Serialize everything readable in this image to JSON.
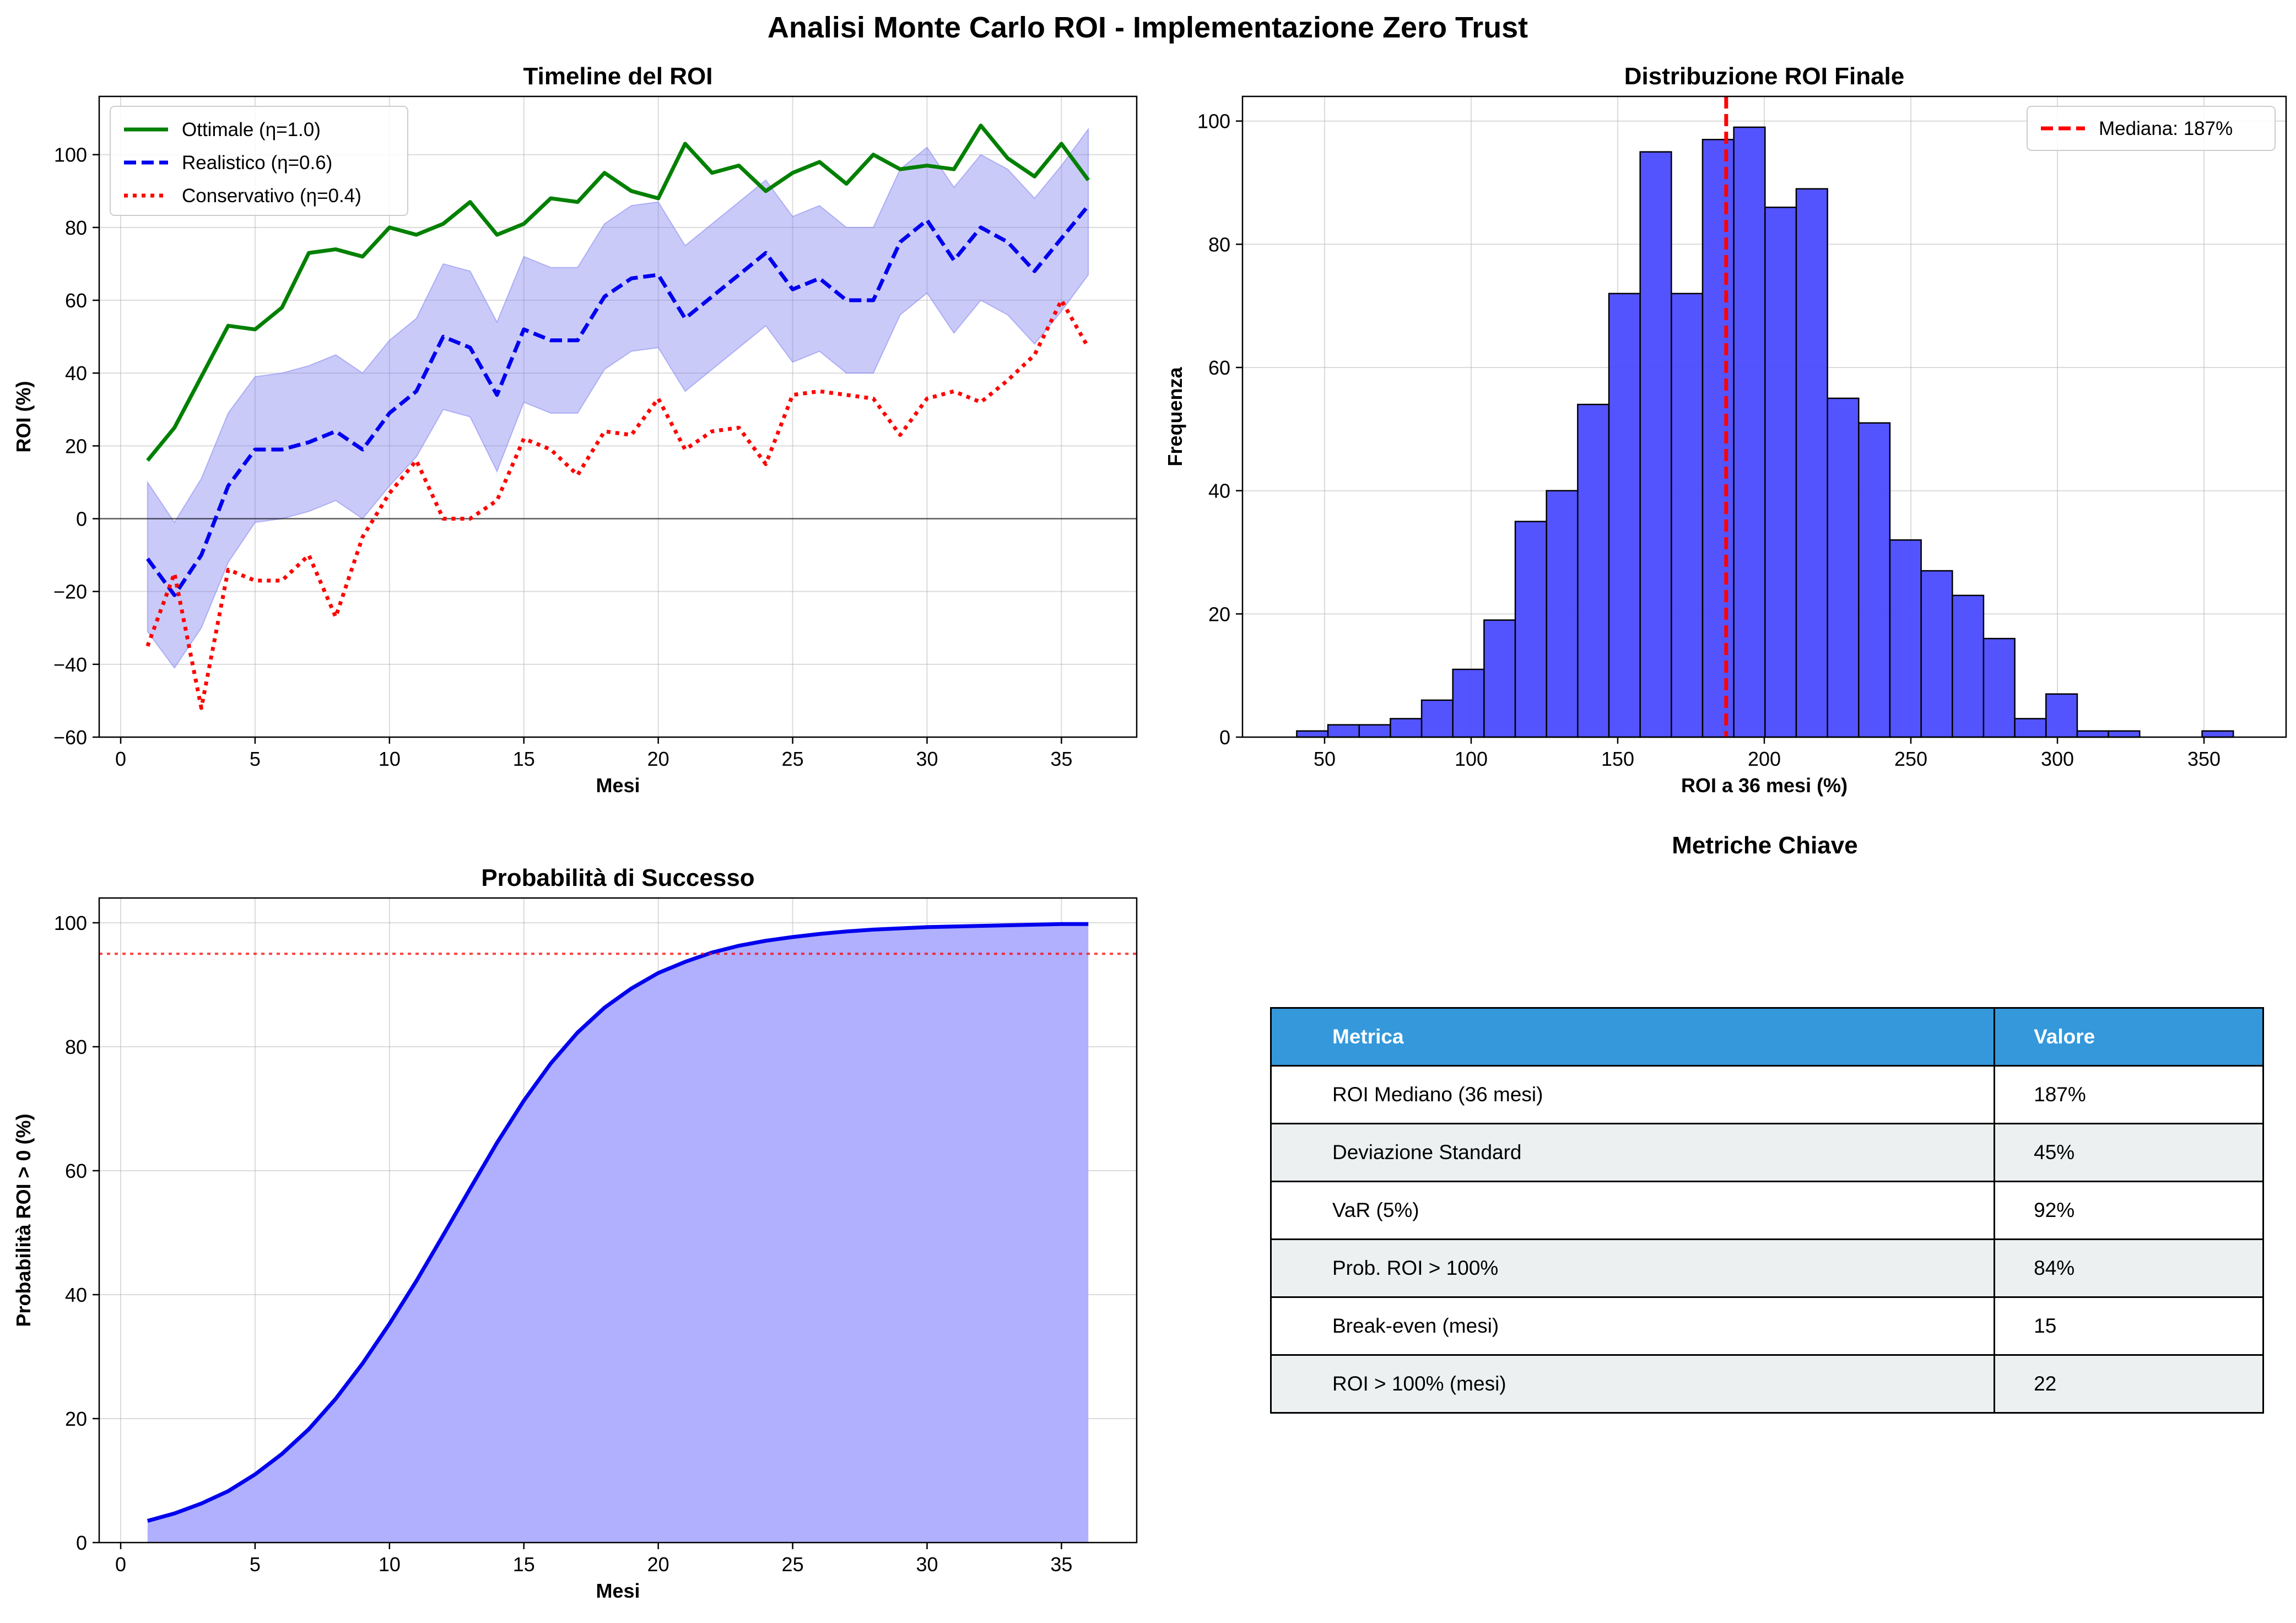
{
  "figure": {
    "suptitle": "Analisi Monte Carlo ROI - Implementazione Zero Trust"
  },
  "colors": {
    "optimal": "#008000",
    "realistic": "#0000ee",
    "conservative": "#ff0000",
    "band": "#7b7bf0",
    "hist": "#4b4bff",
    "prob": "#0000ee",
    "prob_fill": "#b0b0ff",
    "table_header": "#3498db",
    "table_alt": "#ecf0f1"
  },
  "chart_data": [
    {
      "id": "timeline",
      "type": "line",
      "title": "Timeline del ROI",
      "xlabel": "Mesi",
      "ylabel": "ROI (%)",
      "xlim": [
        -0.8,
        37.8
      ],
      "ylim": [
        -60,
        116
      ],
      "xticks": [
        0,
        5,
        10,
        15,
        20,
        25,
        30,
        35
      ],
      "yticks": [
        -60,
        -40,
        -20,
        0,
        20,
        40,
        60,
        80,
        100
      ],
      "legend_position": "top-left",
      "x": [
        1,
        2,
        3,
        4,
        5,
        6,
        7,
        8,
        9,
        10,
        11,
        12,
        13,
        14,
        15,
        16,
        17,
        18,
        19,
        20,
        21,
        22,
        23,
        24,
        25,
        26,
        27,
        28,
        29,
        30,
        31,
        32,
        33,
        34,
        35,
        36
      ],
      "series": [
        {
          "name": "Ottimale (η=1.0)",
          "style": "solid",
          "color": "#008000",
          "values": [
            16,
            25,
            39,
            53,
            52,
            58,
            73,
            74,
            72,
            80,
            78,
            81,
            87,
            78,
            81,
            88,
            87,
            95,
            90,
            88,
            103,
            95,
            97,
            90,
            95,
            98,
            92,
            100,
            96,
            97,
            96,
            108,
            99,
            94,
            103,
            93
          ]
        },
        {
          "name": "Realistico (η=0.6)",
          "style": "dashed",
          "color": "#0000ee",
          "values": [
            -11,
            -21,
            -10,
            9,
            19,
            19,
            21,
            24,
            19,
            29,
            35,
            50,
            47,
            34,
            52,
            49,
            49,
            61,
            66,
            67,
            55,
            61,
            67,
            73,
            63,
            66,
            60,
            60,
            76,
            82,
            71,
            80,
            76,
            68,
            77,
            86
          ]
        },
        {
          "name": "Conservativo (η=0.4)",
          "style": "dotted",
          "color": "#ff0000",
          "values": [
            -35,
            -15,
            -52,
            -14,
            -17,
            -17,
            -10,
            -27,
            -5,
            7,
            16,
            0,
            0,
            5,
            22,
            19,
            12,
            24,
            23,
            33,
            19,
            24,
            25,
            15,
            34,
            35,
            34,
            33,
            23,
            33,
            35,
            32,
            38,
            45,
            60,
            47
          ]
        }
      ],
      "band": {
        "lower": [
          -31,
          -41,
          -30,
          -12,
          -1,
          0,
          2,
          5,
          0,
          9,
          17,
          30,
          28,
          13,
          32,
          29,
          29,
          41,
          46,
          47,
          35,
          41,
          47,
          53,
          43,
          46,
          40,
          40,
          56,
          62,
          51,
          60,
          56,
          48,
          57,
          67
        ],
        "upper": [
          10,
          -1,
          11,
          29,
          39,
          40,
          42,
          45,
          40,
          49,
          55,
          70,
          68,
          54,
          72,
          69,
          69,
          81,
          86,
          87,
          75,
          81,
          87,
          93,
          83,
          86,
          80,
          80,
          96,
          102,
          91,
          100,
          96,
          88,
          97,
          107
        ]
      },
      "hline": 0
    },
    {
      "id": "distribution",
      "type": "bar",
      "title": "Distribuzione ROI Finale",
      "xlabel": "ROI a 36 mesi (%)",
      "ylabel": "Frequenza",
      "xlim": [
        22,
        378
      ],
      "ylim": [
        0,
        104
      ],
      "xticks": [
        50,
        100,
        150,
        200,
        250,
        300,
        350
      ],
      "yticks": [
        0,
        20,
        40,
        60,
        80,
        100
      ],
      "legend_position": "top-right",
      "bin_start": 40.5,
      "bin_width": 10.65,
      "counts": [
        1,
        2,
        2,
        3,
        6,
        11,
        19,
        35,
        40,
        54,
        72,
        95,
        72,
        97,
        99,
        86,
        89,
        55,
        51,
        32,
        27,
        23,
        16,
        3,
        7,
        1,
        1,
        0,
        0,
        1
      ],
      "median": 187,
      "median_label": "Mediana: 187%"
    },
    {
      "id": "probability",
      "type": "area",
      "title": "Probabilità di Successo",
      "xlabel": "Mesi",
      "ylabel": "Probabilità ROI > 0 (%)",
      "xlim": [
        -0.8,
        37.8
      ],
      "ylim": [
        0,
        104
      ],
      "xticks": [
        0,
        5,
        10,
        15,
        20,
        25,
        30,
        35
      ],
      "yticks": [
        0,
        20,
        40,
        60,
        80,
        100
      ],
      "x": [
        1,
        2,
        3,
        4,
        5,
        6,
        7,
        8,
        9,
        10,
        11,
        12,
        13,
        14,
        15,
        16,
        17,
        18,
        19,
        20,
        21,
        22,
        23,
        24,
        25,
        26,
        27,
        28,
        29,
        30,
        31,
        32,
        33,
        34,
        35,
        36
      ],
      "values": [
        3.5,
        4.7,
        6.3,
        8.3,
        11.0,
        14.3,
        18.3,
        23.2,
        28.9,
        35.3,
        42.2,
        49.6,
        57.1,
        64.5,
        71.3,
        77.3,
        82.3,
        86.3,
        89.4,
        91.9,
        93.7,
        95.2,
        96.3,
        97.1,
        97.7,
        98.2,
        98.6,
        98.9,
        99.1,
        99.3,
        99.4,
        99.5,
        99.6,
        99.7,
        99.8,
        99.8
      ],
      "hline": 95
    }
  ],
  "metrics": {
    "title": "Metriche Chiave",
    "headers": [
      "Metrica",
      "Valore"
    ],
    "rows": [
      [
        "ROI Mediano (36 mesi)",
        "187%"
      ],
      [
        "Deviazione Standard",
        "45%"
      ],
      [
        "VaR (5%)",
        "92%"
      ],
      [
        "Prob. ROI > 100%",
        "84%"
      ],
      [
        "Break-even (mesi)",
        "15"
      ],
      [
        "ROI > 100% (mesi)",
        "22"
      ]
    ]
  }
}
